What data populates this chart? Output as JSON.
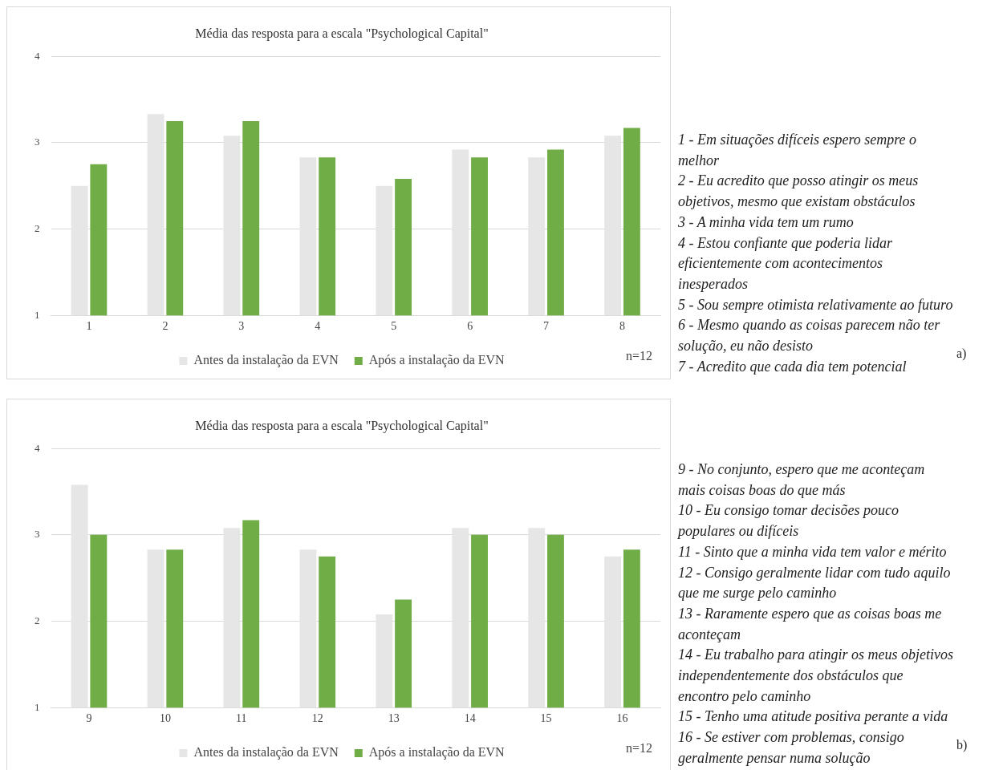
{
  "chart_data": [
    {
      "type": "bar",
      "title": "Média das resposta para a escala \"Psychological Capital\"",
      "categories": [
        "1",
        "2",
        "3",
        "4",
        "5",
        "6",
        "7",
        "8"
      ],
      "series": [
        {
          "name": "Antes da instalação da EVN",
          "color": "#e7e6e6",
          "values": [
            2.5,
            3.33,
            3.08,
            2.83,
            2.5,
            2.92,
            2.83,
            3.08
          ]
        },
        {
          "name": "Após a instalação da EVN",
          "color": "#70ad47",
          "values": [
            2.75,
            3.25,
            3.25,
            2.83,
            2.58,
            2.83,
            2.92,
            3.17
          ]
        }
      ],
      "ylim": [
        1,
        4
      ],
      "yticks": [
        1,
        2,
        3,
        4
      ],
      "grid": "y",
      "legend": "bottom",
      "annotations": [
        "n=12",
        "1 - Em situações difíceis espero sempre o melhor",
        "2 - Eu acredito que posso atingir os meus objetivos, mesmo que existam obstáculos",
        "3 - A minha vida tem um rumo",
        "4 - Estou confiante que poderia lidar eficientemente com acontecimentos inesperados",
        "5 - Sou sempre otimista relativamente ao futuro",
        "6 - Mesmo quando as coisas parecem não ter solução, eu não desisto",
        "7 - Acredito que cada dia tem potencial",
        "a)"
      ]
    },
    {
      "type": "bar",
      "title": "Média das resposta para a escala \"Psychological Capital\"",
      "categories": [
        "9",
        "10",
        "11",
        "12",
        "13",
        "14",
        "15",
        "16"
      ],
      "series": [
        {
          "name": "Antes da instalação da EVN",
          "color": "#e7e6e6",
          "values": [
            3.58,
            2.83,
            3.08,
            2.83,
            2.08,
            3.08,
            3.08,
            2.75
          ]
        },
        {
          "name": "Após a instalação da EVN",
          "color": "#70ad47",
          "values": [
            3.0,
            2.83,
            3.17,
            2.75,
            2.25,
            3.0,
            3.0,
            2.83
          ]
        }
      ],
      "ylim": [
        1,
        4
      ],
      "yticks": [
        1,
        2,
        3,
        4
      ],
      "grid": "y",
      "legend": "bottom",
      "annotations": [
        "n=12",
        "9 - No conjunto, espero que me aconteçam mais coisas boas do que más",
        "10 - Eu consigo tomar decisões pouco populares ou difíceis",
        "11 - Sinto que a minha vida tem valor e mérito",
        "12 - Consigo geralmente lidar com tudo aquilo que me surge pelo caminho",
        "13 - Raramente espero que as coisas boas me aconteçam",
        "14 - Eu trabalho para atingir os meus objetivos independentemente dos obstáculos que encontro pelo caminho",
        "15 - Tenho uma atitude positiva perante a vida",
        "16 - Se estiver com problemas, consigo geralmente pensar numa solução",
        "b)"
      ]
    }
  ]
}
